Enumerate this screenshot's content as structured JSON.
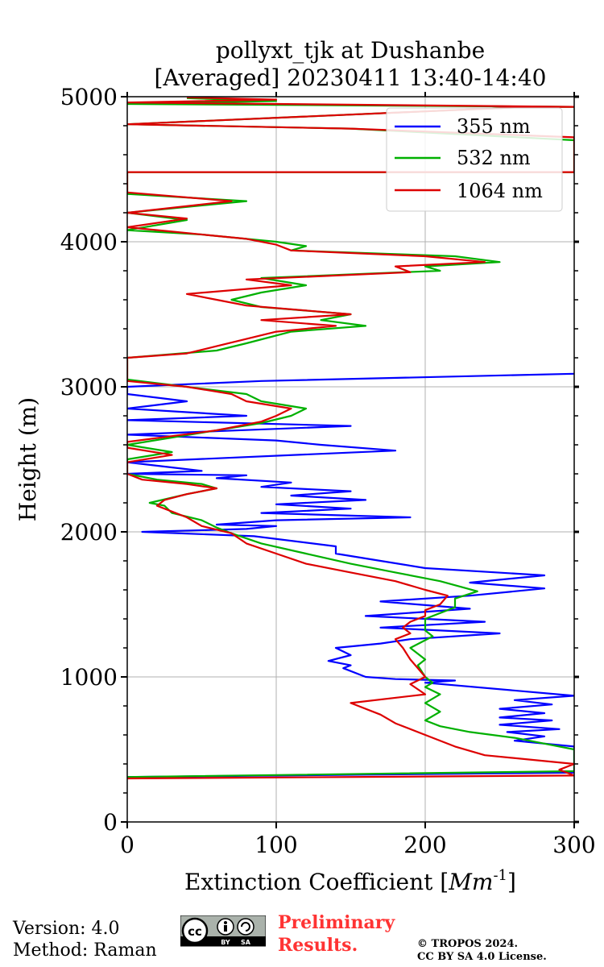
{
  "chart_data": {
    "type": "line",
    "title_line1": "pollyxt_tjk at Dushanbe",
    "title_line2": "[Averaged] 20230411 13:40-14:40",
    "xlabel": "Extinction Coefficient [",
    "xlabel_unit": "Mm",
    "xlabel_exp": "-1",
    "xlabel_close": "]",
    "ylabel": "Height (m)",
    "xlim": [
      0,
      300
    ],
    "ylim": [
      0,
      5000
    ],
    "x_ticks": [
      0,
      100,
      200,
      300
    ],
    "y_ticks": [
      0,
      1000,
      2000,
      3000,
      4000,
      5000
    ],
    "x_tick_labels": [
      "0",
      "100",
      "200",
      "300"
    ],
    "y_tick_labels": [
      "0",
      "1000",
      "2000",
      "3000",
      "4000",
      "5000"
    ],
    "grid": true,
    "legend_position": "top-right",
    "colors": {
      "355 nm": "#0000ff",
      "532 nm": "#00b000",
      "1064 nm": "#dd0000"
    },
    "series": [
      {
        "name": "355 nm",
        "points": [
          [
            0,
            310
          ],
          [
            300,
            340
          ],
          [
            300,
            380
          ],
          [
            300,
            520
          ],
          [
            260,
            560
          ],
          [
            280,
            590
          ],
          [
            255,
            620
          ],
          [
            290,
            640
          ],
          [
            250,
            670
          ],
          [
            285,
            700
          ],
          [
            250,
            720
          ],
          [
            280,
            750
          ],
          [
            250,
            780
          ],
          [
            285,
            810
          ],
          [
            260,
            840
          ],
          [
            300,
            870
          ],
          [
            200,
            960
          ],
          [
            220,
            975
          ],
          [
            180,
            985
          ],
          [
            160,
            1000
          ],
          [
            145,
            1060
          ],
          [
            150,
            1080
          ],
          [
            135,
            1110
          ],
          [
            150,
            1150
          ],
          [
            140,
            1200
          ],
          [
            170,
            1230
          ],
          [
            190,
            1260
          ],
          [
            250,
            1300
          ],
          [
            170,
            1340
          ],
          [
            240,
            1380
          ],
          [
            160,
            1420
          ],
          [
            230,
            1470
          ],
          [
            170,
            1520
          ],
          [
            230,
            1560
          ],
          [
            280,
            1610
          ],
          [
            230,
            1650
          ],
          [
            280,
            1700
          ],
          [
            200,
            1750
          ],
          [
            170,
            1800
          ],
          [
            140,
            1850
          ],
          [
            140,
            1900
          ],
          [
            85,
            1970
          ],
          [
            10,
            2000
          ],
          [
            80,
            2020
          ],
          [
            100,
            2040
          ],
          [
            60,
            2050
          ],
          [
            100,
            2080
          ],
          [
            190,
            2100
          ],
          [
            90,
            2130
          ],
          [
            150,
            2160
          ],
          [
            100,
            2190
          ],
          [
            160,
            2220
          ],
          [
            110,
            2250
          ],
          [
            150,
            2280
          ],
          [
            90,
            2310
          ],
          [
            110,
            2340
          ],
          [
            60,
            2370
          ],
          [
            80,
            2390
          ],
          [
            0,
            2400
          ],
          [
            50,
            2420
          ],
          [
            0,
            2480
          ],
          [
            180,
            2560
          ],
          [
            130,
            2600
          ],
          [
            100,
            2630
          ],
          [
            0,
            2670
          ],
          [
            150,
            2730
          ],
          [
            0,
            2770
          ],
          [
            80,
            2800
          ],
          [
            0,
            2850
          ],
          [
            40,
            2900
          ],
          [
            0,
            2950
          ],
          [
            0,
            3000
          ],
          [
            90,
            3040
          ],
          [
            300,
            3090
          ]
        ]
      },
      {
        "name": "532 nm",
        "points": [
          [
            0,
            310
          ],
          [
            300,
            350
          ],
          [
            300,
            380
          ],
          [
            300,
            500
          ],
          [
            280,
            540
          ],
          [
            260,
            580
          ],
          [
            230,
            620
          ],
          [
            210,
            660
          ],
          [
            200,
            700
          ],
          [
            210,
            760
          ],
          [
            200,
            820
          ],
          [
            210,
            880
          ],
          [
            200,
            930
          ],
          [
            205,
            960
          ],
          [
            200,
            1000
          ],
          [
            195,
            1080
          ],
          [
            200,
            1120
          ],
          [
            190,
            1200
          ],
          [
            205,
            1280
          ],
          [
            200,
            1320
          ],
          [
            200,
            1400
          ],
          [
            220,
            1480
          ],
          [
            220,
            1540
          ],
          [
            235,
            1590
          ],
          [
            210,
            1660
          ],
          [
            180,
            1720
          ],
          [
            150,
            1780
          ],
          [
            120,
            1850
          ],
          [
            90,
            1920
          ],
          [
            70,
            1990
          ],
          [
            60,
            2030
          ],
          [
            50,
            2080
          ],
          [
            30,
            2130
          ],
          [
            25,
            2180
          ],
          [
            15,
            2200
          ],
          [
            40,
            2260
          ],
          [
            60,
            2300
          ],
          [
            50,
            2330
          ],
          [
            20,
            2360
          ],
          [
            0,
            2400
          ],
          [
            0,
            2500
          ],
          [
            30,
            2550
          ],
          [
            0,
            2600
          ],
          [
            60,
            2700
          ],
          [
            90,
            2750
          ],
          [
            110,
            2800
          ],
          [
            120,
            2850
          ],
          [
            90,
            2900
          ],
          [
            80,
            2950
          ],
          [
            40,
            3000
          ],
          [
            0,
            3050
          ],
          [
            0,
            3200
          ],
          [
            60,
            3250
          ],
          [
            80,
            3300
          ],
          [
            110,
            3380
          ],
          [
            160,
            3420
          ],
          [
            130,
            3460
          ],
          [
            150,
            3500
          ],
          [
            90,
            3550
          ],
          [
            70,
            3600
          ],
          [
            90,
            3650
          ],
          [
            120,
            3700
          ],
          [
            90,
            3750
          ],
          [
            210,
            3800
          ],
          [
            200,
            3830
          ],
          [
            250,
            3860
          ],
          [
            220,
            3900
          ],
          [
            110,
            3940
          ],
          [
            120,
            3970
          ],
          [
            100,
            4000
          ],
          [
            50,
            4050
          ],
          [
            0,
            4080
          ],
          [
            40,
            4150
          ],
          [
            0,
            4200
          ],
          [
            80,
            4280
          ],
          [
            0,
            4330
          ],
          [
            0,
            4480
          ],
          [
            300,
            4480
          ],
          [
            300,
            4520
          ],
          [
            300,
            4580
          ],
          [
            300,
            4640
          ],
          [
            300,
            4700
          ],
          [
            150,
            4780
          ],
          [
            0,
            4810
          ],
          [
            270,
            4930
          ],
          [
            300,
            4930
          ],
          [
            0,
            4950
          ],
          [
            100,
            4970
          ],
          [
            40,
            4990
          ]
        ]
      },
      {
        "name": "1064 nm",
        "points": [
          [
            0,
            300
          ],
          [
            300,
            320
          ],
          [
            290,
            360
          ],
          [
            300,
            400
          ],
          [
            240,
            460
          ],
          [
            220,
            520
          ],
          [
            200,
            600
          ],
          [
            180,
            680
          ],
          [
            170,
            740
          ],
          [
            150,
            820
          ],
          [
            200,
            880
          ],
          [
            190,
            950
          ],
          [
            200,
            1000
          ],
          [
            195,
            1060
          ],
          [
            190,
            1120
          ],
          [
            185,
            1200
          ],
          [
            180,
            1260
          ],
          [
            190,
            1300
          ],
          [
            185,
            1340
          ],
          [
            190,
            1380
          ],
          [
            200,
            1420
          ],
          [
            200,
            1460
          ],
          [
            210,
            1500
          ],
          [
            215,
            1560
          ],
          [
            200,
            1600
          ],
          [
            180,
            1660
          ],
          [
            150,
            1720
          ],
          [
            120,
            1780
          ],
          [
            100,
            1850
          ],
          [
            80,
            1920
          ],
          [
            70,
            1990
          ],
          [
            50,
            2040
          ],
          [
            40,
            2100
          ],
          [
            30,
            2140
          ],
          [
            20,
            2180
          ],
          [
            25,
            2220
          ],
          [
            40,
            2260
          ],
          [
            60,
            2300
          ],
          [
            40,
            2330
          ],
          [
            10,
            2360
          ],
          [
            0,
            2400
          ],
          [
            0,
            2480
          ],
          [
            30,
            2530
          ],
          [
            0,
            2580
          ],
          [
            0,
            2620
          ],
          [
            60,
            2700
          ],
          [
            90,
            2760
          ],
          [
            100,
            2800
          ],
          [
            110,
            2850
          ],
          [
            80,
            2900
          ],
          [
            70,
            2950
          ],
          [
            40,
            3000
          ],
          [
            0,
            3040
          ],
          [
            0,
            3200
          ],
          [
            40,
            3230
          ],
          [
            60,
            3280
          ],
          [
            80,
            3330
          ],
          [
            100,
            3380
          ],
          [
            140,
            3420
          ],
          [
            90,
            3460
          ],
          [
            150,
            3500
          ],
          [
            80,
            3560
          ],
          [
            60,
            3600
          ],
          [
            40,
            3640
          ],
          [
            110,
            3700
          ],
          [
            80,
            3740
          ],
          [
            190,
            3790
          ],
          [
            180,
            3830
          ],
          [
            240,
            3860
          ],
          [
            200,
            3900
          ],
          [
            110,
            3940
          ],
          [
            100,
            3980
          ],
          [
            80,
            4020
          ],
          [
            30,
            4070
          ],
          [
            0,
            4100
          ],
          [
            40,
            4160
          ],
          [
            0,
            4200
          ],
          [
            70,
            4280
          ],
          [
            0,
            4340
          ],
          [
            0,
            4480
          ],
          [
            300,
            4480
          ],
          [
            300,
            4520
          ],
          [
            300,
            4580
          ],
          [
            300,
            4650
          ],
          [
            300,
            4720
          ],
          [
            150,
            4780
          ],
          [
            0,
            4810
          ],
          [
            270,
            4930
          ],
          [
            300,
            4930
          ],
          [
            0,
            4960
          ],
          [
            100,
            4980
          ],
          [
            40,
            4995
          ]
        ]
      }
    ]
  },
  "footer": {
    "version": "Version: 4.0",
    "method": "Method: Raman",
    "prelim_line1": "Preliminary",
    "prelim_line2": "Results.",
    "copyright_line1": "© TROPOS 2024.",
    "copyright_line2": "CC BY SA 4.0 License.",
    "cc_text": "cc",
    "cc_by": "BY",
    "cc_sa": "SA"
  }
}
